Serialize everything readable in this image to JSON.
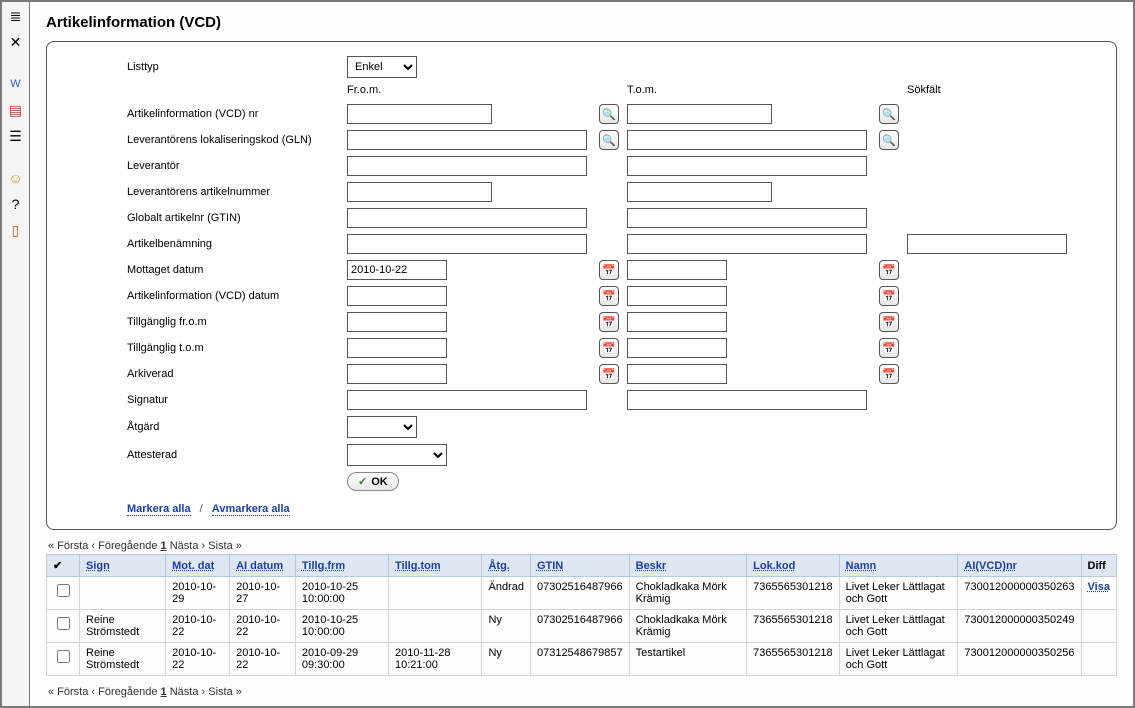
{
  "page": {
    "title": "Artikelinformation (VCD)"
  },
  "filter": {
    "listtyp_label": "Listtyp",
    "listtyp_value": "Enkel",
    "from_header": "Fr.o.m.",
    "to_header": "T.o.m.",
    "sokfalt_header": "Sökfält",
    "vcd_nr_label": "Artikelinformation (VCD) nr",
    "gln_label": "Leverantörens lokaliseringskod (GLN)",
    "leverantor_label": "Leverantör",
    "lev_artnr_label": "Leverantörens artikelnummer",
    "gtin_label": "Globalt artikelnr (GTIN)",
    "benamning_label": "Artikelbenämning",
    "mottaget_label": "Mottaget datum",
    "mottaget_from": "2010-10-22",
    "vcd_datum_label": "Artikelinformation (VCD) datum",
    "tillg_from_label": "Tillgänglig fr.o.m",
    "tillg_tom_label": "Tillgänglig t.o.m",
    "arkiverad_label": "Arkiverad",
    "signatur_label": "Signatur",
    "atgard_label": "Åtgärd",
    "attesterad_label": "Attesterad",
    "ok_label": "OK"
  },
  "actions": {
    "markera_alla": "Markera alla",
    "avmarkera_alla": "Avmarkera alla"
  },
  "pager": {
    "first": "« Första",
    "prev": "‹ Föregående",
    "current": "1",
    "next": "Nästa ›",
    "last": "Sista »"
  },
  "table": {
    "headers": {
      "check": "✔",
      "sign": "Sign",
      "motdat": "Mot. dat",
      "aidatum": "AI datum",
      "tillgfrm": "Tillg.frm",
      "tillgtom": "Tillg.tom",
      "atg": "Åtg.",
      "gtin": "GTIN",
      "beskr": "Beskr",
      "lokkod": "Lok.kod",
      "namn": "Namn",
      "aivcdnr": "AI(VCD)nr",
      "diff": "Diff"
    },
    "rows": [
      {
        "sign": "",
        "motdat": "2010-10-29",
        "aidatum": "2010-10-27",
        "tillgfrm": "2010-10-25 10:00:00",
        "tillgtom": "",
        "atg": "Ändrad",
        "gtin": "07302516487966",
        "beskr": "Chokladkaka Mörk Krämig",
        "lokkod": "7365565301218",
        "namn": "Livet Leker Lättlagat och Gott",
        "aivcdnr": "730012000000350263",
        "diff": "Visa"
      },
      {
        "sign": "Reine Strömstedt",
        "motdat": "2010-10-22",
        "aidatum": "2010-10-22",
        "tillgfrm": "2010-10-25 10:00:00",
        "tillgtom": "",
        "atg": "Ny",
        "gtin": "07302516487966",
        "beskr": "Chokladkaka Mörk Krämig",
        "lokkod": "7365565301218",
        "namn": "Livet Leker Lättlagat och Gott",
        "aivcdnr": "730012000000350249",
        "diff": ""
      },
      {
        "sign": "Reine Strömstedt",
        "motdat": "2010-10-22",
        "aidatum": "2010-10-22",
        "tillgfrm": "2010-09-29 09:30:00",
        "tillgtom": "2010-11-28 10:21:00",
        "atg": "Ny",
        "gtin": "07312548679857",
        "beskr": "Testartikel",
        "lokkod": "7365565301218",
        "namn": "Livet Leker Lättlagat och Gott",
        "aivcdnr": "730012000000350256",
        "diff": ""
      }
    ]
  }
}
